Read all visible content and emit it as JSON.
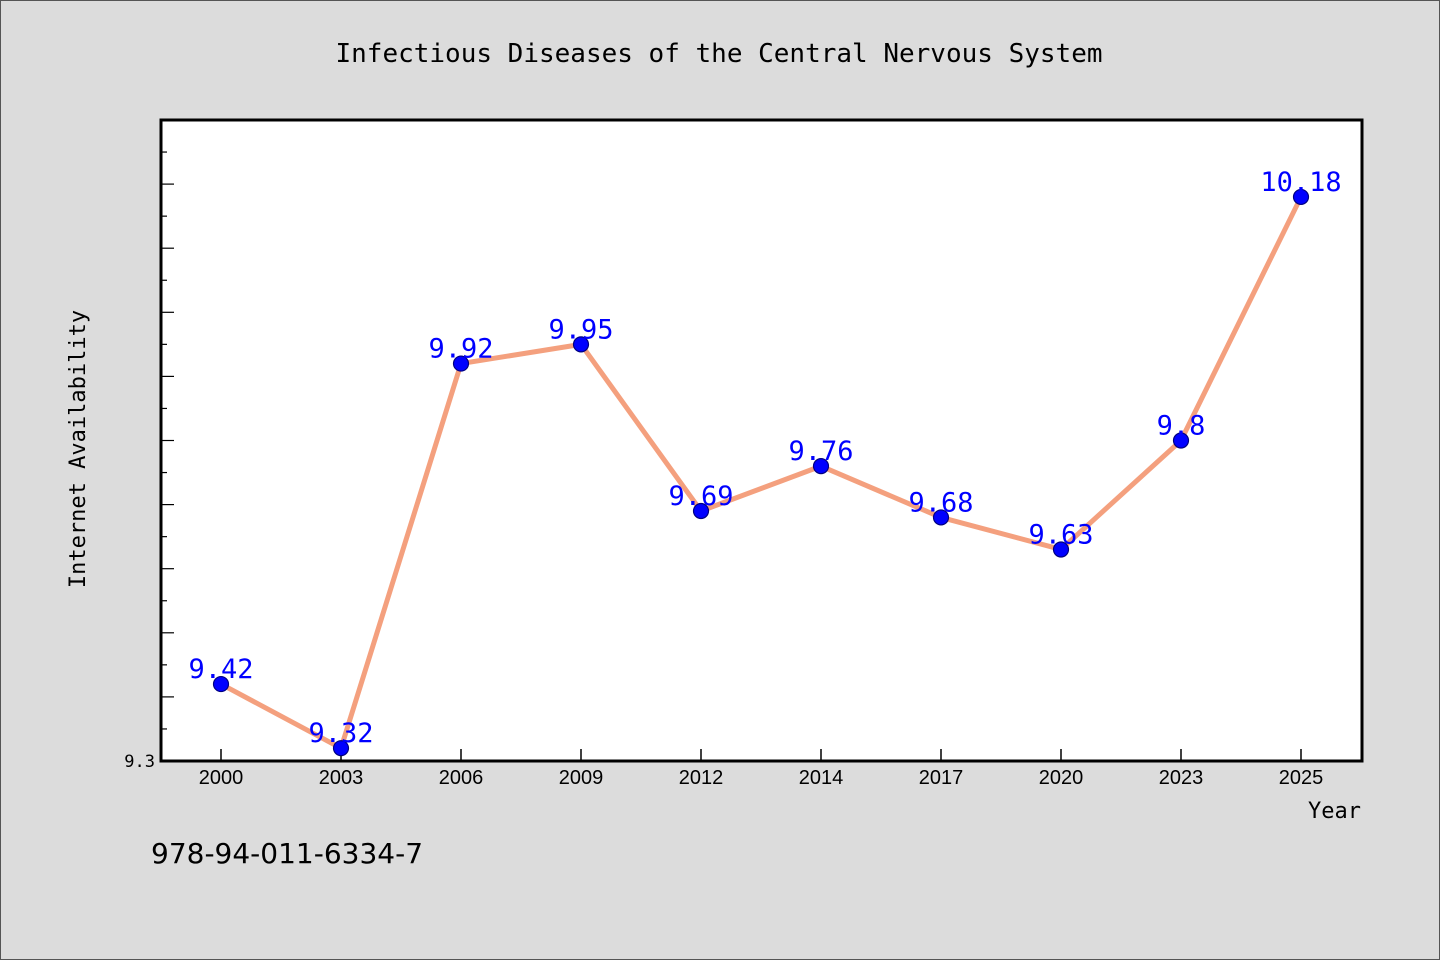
{
  "chart_data": {
    "type": "line",
    "title": "Infectious Diseases of the Central Nervous System",
    "xlabel": "Year",
    "ylabel": "Internet Availability",
    "categories": [
      "2000",
      "2003",
      "2006",
      "2009",
      "2012",
      "2014",
      "2017",
      "2020",
      "2023",
      "2025"
    ],
    "series": [
      {
        "values": [
          9.42,
          9.32,
          9.92,
          9.95,
          9.69,
          9.76,
          9.68,
          9.63,
          9.8,
          10.18
        ]
      }
    ],
    "data_labels": [
      "9.42",
      "9.32",
      "9.92",
      "9.95",
      "9.69",
      "9.76",
      "9.68",
      "9.63",
      "9.8",
      "10.18"
    ],
    "y_tick_labels": [
      "9.3"
    ],
    "ylim": [
      9.3,
      10.3
    ],
    "grid": false,
    "colors": {
      "line": "#f4a07e",
      "marker": "#0000ff",
      "marker_edge": "#000080",
      "data_label": "#0000ff",
      "background": "#dcdcdc",
      "plot_background": "#ffffff"
    }
  },
  "footer_code": "978-94-011-6334-7"
}
